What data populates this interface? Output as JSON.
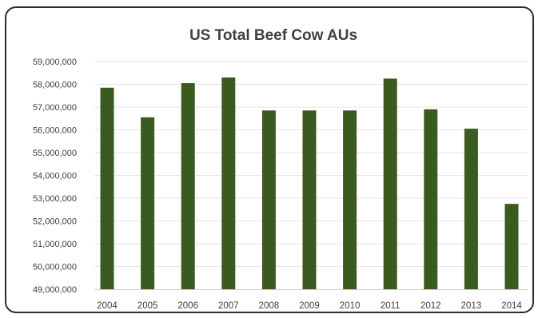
{
  "chart_data": {
    "type": "bar",
    "title": "US Total Beef Cow AUs",
    "xlabel": "",
    "ylabel": "",
    "categories": [
      "2004",
      "2005",
      "2006",
      "2007",
      "2008",
      "2009",
      "2010",
      "2011",
      "2012",
      "2013",
      "2014"
    ],
    "values": [
      57850000,
      56550000,
      58050000,
      58300000,
      56850000,
      56850000,
      56850000,
      58250000,
      56900000,
      56050000,
      52750000
    ],
    "ylim": [
      49000000,
      59000000
    ],
    "yticks": [
      49000000,
      50000000,
      51000000,
      52000000,
      53000000,
      54000000,
      55000000,
      56000000,
      57000000,
      58000000,
      59000000
    ],
    "ytick_labels": [
      "49,000,000",
      "50,000,000",
      "51,000,000",
      "52,000,000",
      "53,000,000",
      "54,000,000",
      "55,000,000",
      "56,000,000",
      "57,000,000",
      "58,000,000",
      "59,000,000"
    ],
    "grid": true,
    "legend": "none",
    "bar_color": "#3b5a1f",
    "grid_color": "#e6e6e6"
  }
}
